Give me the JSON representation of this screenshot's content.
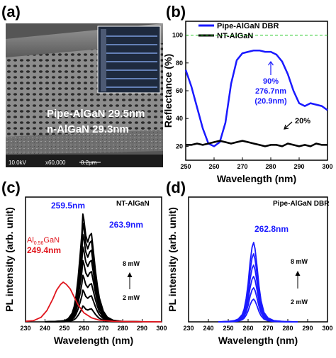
{
  "panels": {
    "a": {
      "letter": "(a)",
      "label_line1": "Pipe-AlGaN 29.5nm",
      "label_line2": "n-AlGaN 29.3nm",
      "footer_kv": "10.0kV",
      "footer_mag": "x60,000",
      "footer_scale": "0.2μm"
    },
    "b": {
      "letter": "(b)"
    },
    "c": {
      "letter": "(c)"
    },
    "d": {
      "letter": "(d)"
    }
  },
  "colors": {
    "blue": "#1a1aff",
    "black": "#000000",
    "red": "#e0141c",
    "green": "#22c822"
  },
  "chart_data": [
    {
      "panel": "b",
      "type": "line",
      "xlabel": "Wavelength (nm)",
      "ylabel": "Reflectance (%)",
      "xlim": [
        250,
        300
      ],
      "ylim": [
        10,
        110
      ],
      "xticks": [
        250,
        260,
        270,
        280,
        290,
        300
      ],
      "yticks": [
        20,
        40,
        60,
        80,
        100
      ],
      "grid": false,
      "legend_position": "top-left",
      "reference_line": {
        "y": 100,
        "style": "dashed",
        "color": "#22c822"
      },
      "series": [
        {
          "name": "Pipe-AlGaN DBR",
          "color": "#1a1aff",
          "x": [
            250,
            252,
            254,
            256,
            258,
            260,
            262,
            264,
            266,
            268,
            270,
            272,
            274,
            276,
            278,
            280,
            282,
            284,
            286,
            288,
            290,
            292,
            294,
            296,
            298,
            300
          ],
          "y": [
            75,
            63,
            48,
            33,
            22,
            20,
            23,
            37,
            65,
            82,
            87,
            88,
            89,
            89,
            88,
            88,
            86,
            81,
            72,
            60,
            51,
            49,
            51,
            50,
            49,
            46
          ]
        },
        {
          "name": "NT-AlGaN",
          "color": "#000000",
          "x": [
            250,
            252,
            254,
            256,
            258,
            260,
            262,
            264,
            266,
            268,
            270,
            272,
            274,
            276,
            278,
            280,
            282,
            284,
            286,
            288,
            290,
            292,
            294,
            296,
            298,
            300
          ],
          "y": [
            21,
            21,
            22,
            21,
            22,
            23,
            24,
            23,
            22,
            23,
            24,
            23,
            22,
            21,
            20,
            21,
            21,
            20,
            22,
            21,
            20,
            21,
            20,
            22,
            21,
            21
          ]
        }
      ],
      "annotations": [
        {
          "text": "90%",
          "color": "#1a1aff"
        },
        {
          "text": "276.7nm",
          "color": "#1a1aff"
        },
        {
          "text": "(20.9nm)",
          "color": "#1a1aff"
        },
        {
          "text": "20%",
          "color": "#000000"
        }
      ]
    },
    {
      "panel": "c",
      "type": "line",
      "xlabel": "Wavelength (nm)",
      "ylabel": "PL intensity (arb. unit)",
      "xlim": [
        230,
        300
      ],
      "xticks": [
        230,
        240,
        250,
        260,
        270,
        280,
        290,
        300
      ],
      "ylim": [
        0,
        1.1
      ],
      "grid": false,
      "legend_title": "NT-AlGaN",
      "power_labels": [
        "8 mW",
        "2 mW"
      ],
      "curve_x": [
        240,
        245,
        250,
        252,
        254,
        255,
        256,
        257,
        258,
        259,
        259.5,
        260,
        261,
        262,
        263,
        263.9,
        265,
        266,
        267,
        268,
        270,
        272,
        275,
        280,
        290
      ],
      "curve_shape": [
        0,
        0.003,
        0.01,
        0.03,
        0.08,
        0.14,
        0.24,
        0.4,
        0.6,
        0.82,
        1.0,
        0.95,
        0.8,
        0.74,
        0.8,
        0.82,
        0.64,
        0.47,
        0.33,
        0.22,
        0.1,
        0.045,
        0.015,
        0.003,
        0
      ],
      "series": [
        {
          "name": "NT-AlGaN",
          "color": "#000000",
          "peak_values": [
            0.14,
            0.28,
            0.41,
            0.54,
            0.66,
            0.77,
            0.87,
            0.95
          ]
        },
        {
          "name": "Al0.56GaN",
          "color": "#e0141c",
          "x": [
            230,
            234,
            238,
            241,
            244,
            246,
            248,
            249.4,
            251,
            253,
            255,
            257,
            260,
            264,
            268,
            275,
            285,
            300
          ],
          "y": [
            0.005,
            0.01,
            0.04,
            0.1,
            0.2,
            0.28,
            0.33,
            0.35,
            0.33,
            0.29,
            0.22,
            0.15,
            0.08,
            0.035,
            0.015,
            0.005,
            0.002,
            0
          ]
        }
      ],
      "annotations": [
        {
          "text": "259.5nm",
          "color": "#1a1aff"
        },
        {
          "text": "263.9nm",
          "color": "#1a1aff"
        },
        {
          "text": "249.4nm",
          "color": "#e0141c"
        }
      ],
      "red_label": {
        "base": "Al",
        "sub": "0.56",
        "tail": "GaN"
      }
    },
    {
      "panel": "d",
      "type": "line",
      "xlabel": "Wavelength (nm)",
      "ylabel": "PL intensity (arb. unit)",
      "xlim": [
        230,
        300
      ],
      "xticks": [
        230,
        240,
        250,
        260,
        270,
        280,
        290,
        300
      ],
      "ylim": [
        0,
        1.1
      ],
      "grid": false,
      "legend_title": "Pipe-AlGaN DBR",
      "power_labels": [
        "8 mW",
        "2 mW"
      ],
      "curve_x": [
        245,
        250,
        253,
        255,
        257,
        258,
        259,
        260,
        261,
        262,
        262.8,
        263.5,
        264.5,
        265.5,
        266.5,
        268,
        270,
        273,
        278,
        285
      ],
      "curve_shape": [
        0,
        0.005,
        0.015,
        0.035,
        0.09,
        0.16,
        0.29,
        0.48,
        0.75,
        0.94,
        1.0,
        0.92,
        0.7,
        0.45,
        0.27,
        0.12,
        0.05,
        0.015,
        0.004,
        0
      ],
      "series": [
        {
          "name": "Pipe-AlGaN DBR",
          "color": "#1a1aff",
          "peak_values": [
            0.2,
            0.3,
            0.4,
            0.5,
            0.6,
            0.7
          ]
        }
      ],
      "annotations": [
        {
          "text": "262.8nm",
          "color": "#1a1aff"
        }
      ]
    }
  ]
}
